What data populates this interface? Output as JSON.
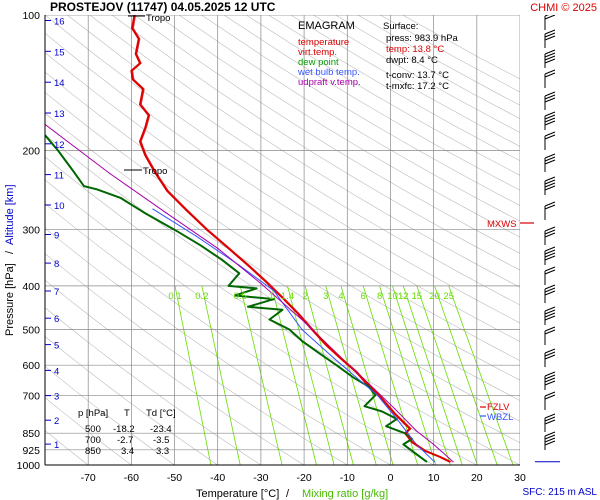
{
  "header": {
    "title": "PROSTEJOV (11747)    04.05.2025 12 UTC",
    "credit": "CHMI © 2025",
    "sfc": "SFC: 215 m ASL"
  },
  "colors": {
    "temperature": "#dd0000",
    "dewpoint": "#006600",
    "wetbulb": "#3355ff",
    "updraft": "#aa00aa",
    "mixing": "#66dd00",
    "altitude": "#0000cc",
    "grid": "#888888",
    "diag": "#bbbbbb"
  },
  "legend": {
    "title": "EMAGRAM",
    "items": [
      {
        "label": "temperature",
        "color": "#dd0000"
      },
      {
        "label": "virt.temp.",
        "color": "#dd0000"
      },
      {
        "label": "dew point",
        "color": "#009900"
      },
      {
        "label": "wet bulb temp.",
        "color": "#3355ff"
      },
      {
        "label": "udpraft v.temp.",
        "color": "#aa00aa"
      }
    ]
  },
  "surface": {
    "title": "Surface:",
    "press": "press: 983.9 hPa",
    "temp": "temp: 13.8 °C",
    "dwpt": "dwpt: 8.4 °C",
    "tconv": "t-conv: 13.7 °C",
    "tmxfc": "t-mxfc: 17.2 °C"
  },
  "table": {
    "headers": [
      "p [hPa]",
      "T",
      "Td [°C]"
    ],
    "rows": [
      [
        "500",
        "-18.2",
        "-23.4"
      ],
      [
        "700",
        "-2.7",
        "-3.5"
      ],
      [
        "850",
        "3.4",
        "3.3"
      ]
    ]
  },
  "axes": {
    "ylabel_pressure": "Pressure [hPa]",
    "ylabel_sep": "/",
    "ylabel_altitude": "Altitude [km]",
    "xlabel_temp": "Temperature [°C]",
    "xlabel_sep": "/",
    "xlabel_mix": "Mixing ratio [g/kg]",
    "pressure_ticks": [
      "100",
      "200",
      "300",
      "400",
      "500",
      "600",
      "700",
      "850",
      "925",
      "1000"
    ],
    "altitude_ticks": [
      "16",
      "15",
      "14",
      "13",
      "12",
      "11",
      "10",
      "9",
      "8",
      "7",
      "6",
      "5",
      "4",
      "3",
      "2",
      "1"
    ],
    "temp_ticks": [
      "-70",
      "-60",
      "-50",
      "-40",
      "-30",
      "-20",
      "-10",
      "0",
      "10",
      "20",
      "30"
    ],
    "mixing_labels": [
      "0.1",
      "0.2",
      "0.5",
      "1",
      "1.4",
      "2",
      "3",
      "4",
      "6",
      "8",
      "10",
      "12",
      "15",
      "20",
      "25"
    ]
  },
  "annotations": {
    "tropo": "Tropo",
    "mxws": "MXWS",
    "fzlv": "FZLV",
    "wbzl": "WBZL"
  },
  "chart_data": {
    "type": "line",
    "title": "EMAGRAM",
    "x_range": [
      -80,
      30
    ],
    "p_range": [
      100,
      1000
    ],
    "y_scale": "log-pressure",
    "series": [
      {
        "name": "temperature",
        "points": [
          [
            -59.3,
            100
          ],
          [
            -59.8,
            107
          ],
          [
            -58.3,
            113
          ],
          [
            -59.0,
            122
          ],
          [
            -58.0,
            128
          ],
          [
            -60.0,
            133
          ],
          [
            -59.7,
            139
          ],
          [
            -57.3,
            146
          ],
          [
            -58.0,
            158
          ],
          [
            -56.0,
            167
          ],
          [
            -56.8,
            178
          ],
          [
            -58.0,
            191
          ],
          [
            -56.8,
            205
          ],
          [
            -54.5,
            224
          ],
          [
            -51.7,
            246
          ],
          [
            -47.5,
            270
          ],
          [
            -42.5,
            300
          ],
          [
            -37.5,
            330
          ],
          [
            -33.0,
            360
          ],
          [
            -29.0,
            390
          ],
          [
            -25.0,
            425
          ],
          [
            -21.5,
            460
          ],
          [
            -18.2,
            500
          ],
          [
            -15.0,
            540
          ],
          [
            -11.5,
            580
          ],
          [
            -8.0,
            620
          ],
          [
            -5.5,
            660
          ],
          [
            -2.7,
            700
          ],
          [
            1.0,
            770
          ],
          [
            4.5,
            830
          ],
          [
            3.4,
            850
          ],
          [
            5.0,
            890
          ],
          [
            8.0,
            930
          ],
          [
            11.5,
            960
          ],
          [
            13.8,
            984
          ]
        ]
      },
      {
        "name": "dew point",
        "points": [
          [
            -80.0,
            185
          ],
          [
            -77.0,
            200
          ],
          [
            -73.5,
            222
          ],
          [
            -71.0,
            240
          ],
          [
            -68.0,
            244
          ],
          [
            -62.5,
            255
          ],
          [
            -57.0,
            275
          ],
          [
            -50.0,
            300
          ],
          [
            -44.0,
            325
          ],
          [
            -39.0,
            350
          ],
          [
            -35.0,
            375
          ],
          [
            -37.5,
            400
          ],
          [
            -31.0,
            405
          ],
          [
            -36.0,
            420
          ],
          [
            -27.0,
            428
          ],
          [
            -33.0,
            445
          ],
          [
            -25.0,
            452
          ],
          [
            -28.0,
            475
          ],
          [
            -23.4,
            500
          ],
          [
            -20.5,
            530
          ],
          [
            -17.0,
            560
          ],
          [
            -12.5,
            600
          ],
          [
            -8.5,
            640
          ],
          [
            -5.0,
            670
          ],
          [
            -3.5,
            700
          ],
          [
            -6.0,
            740
          ],
          [
            -2.0,
            760
          ],
          [
            1.5,
            790
          ],
          [
            -1.0,
            820
          ],
          [
            3.3,
            850
          ],
          [
            5.0,
            875
          ],
          [
            3.0,
            900
          ],
          [
            8.4,
            984
          ]
        ]
      },
      {
        "name": "wet bulb temp.",
        "points": [
          [
            -55.0,
            270
          ],
          [
            -45.0,
            310
          ],
          [
            -35.0,
            360
          ],
          [
            -27.0,
            410
          ],
          [
            -20.5,
            500
          ],
          [
            -13.0,
            580
          ],
          [
            -7.0,
            650
          ],
          [
            -3.0,
            700
          ],
          [
            1.5,
            790
          ],
          [
            4.0,
            850
          ],
          [
            6.0,
            900
          ],
          [
            10.2,
            984
          ]
        ]
      },
      {
        "name": "udpraft v.temp.",
        "points": [
          [
            -80.0,
            175
          ],
          [
            -65.0,
            225
          ],
          [
            -52.0,
            275
          ],
          [
            -40.0,
            330
          ],
          [
            -30.0,
            395
          ],
          [
            -20.0,
            480
          ],
          [
            -12.0,
            570
          ],
          [
            -5.0,
            660
          ],
          [
            1.0,
            750
          ],
          [
            6.0,
            840
          ],
          [
            10.0,
            900
          ],
          [
            14.5,
            984
          ]
        ]
      }
    ]
  }
}
